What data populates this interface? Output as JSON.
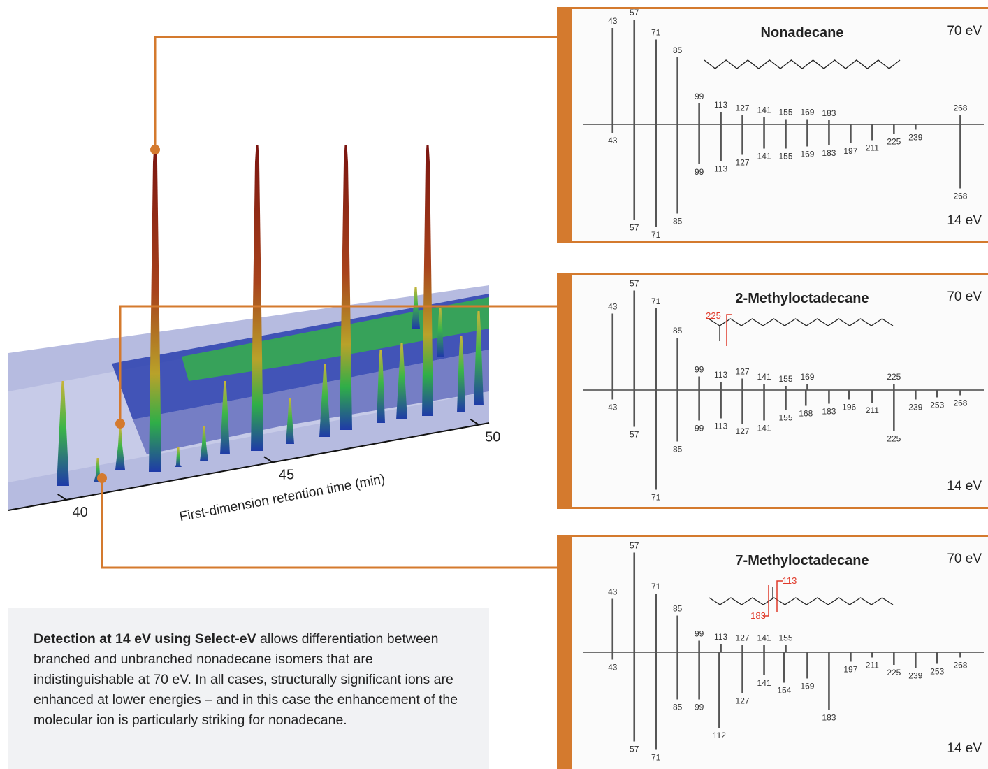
{
  "chart_data": [
    {
      "type": "surface3d",
      "xlabel": "First-dimension retention time (min)",
      "xlim": [
        38.6,
        50.25
      ],
      "xticks": [
        40,
        45,
        50
      ]
    },
    {
      "type": "spectrum",
      "title": "Nonadecane",
      "xlim": [
        30,
        280
      ],
      "ylim": [
        0,
        100
      ],
      "series": [
        {
          "name": "70 eV",
          "color": "#555555",
          "x": [
            43,
            57,
            71,
            85,
            99,
            113,
            127,
            141,
            155,
            169,
            183,
            268
          ],
          "values": [
            92,
            100,
            81,
            64,
            20,
            12,
            9,
            7,
            5,
            5,
            4,
            9
          ]
        },
        {
          "name": "14 eV",
          "color": "#555555",
          "x": [
            43,
            57,
            71,
            85,
            99,
            113,
            127,
            141,
            155,
            169,
            183,
            197,
            211,
            225,
            239,
            268
          ],
          "values": [
            8,
            91,
            98,
            85,
            38,
            35,
            29,
            23,
            23,
            21,
            20,
            18,
            15,
            9,
            5,
            61
          ]
        }
      ],
      "annotations": []
    },
    {
      "type": "spectrum",
      "title": "2-Methyloctadecane",
      "xlim": [
        30,
        280
      ],
      "ylim": [
        0,
        100
      ],
      "series": [
        {
          "name": "70 eV",
          "color": "#555555",
          "x": [
            43,
            57,
            71,
            85,
            99,
            113,
            127,
            141,
            155,
            169,
            225
          ],
          "values": [
            73,
            95,
            78,
            50,
            13,
            8,
            11,
            6,
            4,
            6,
            6
          ]
        },
        {
          "name": "14 eV",
          "color": "#555555",
          "x": [
            43,
            57,
            71,
            85,
            99,
            113,
            127,
            141,
            155,
            168,
            183,
            196,
            211,
            225,
            239,
            253,
            268
          ],
          "values": [
            9,
            35,
            95,
            49,
            29,
            27,
            32,
            29,
            19,
            15,
            13,
            9,
            12,
            39,
            9,
            7,
            5
          ]
        }
      ],
      "annotations": [
        "225"
      ]
    },
    {
      "type": "spectrum",
      "title": "7-Methyloctadecane",
      "xlim": [
        30,
        280
      ],
      "ylim": [
        0,
        100
      ],
      "series": [
        {
          "name": "70 eV",
          "color": "#555555",
          "x": [
            43,
            57,
            71,
            85,
            99,
            113,
            127,
            141,
            155
          ],
          "values": [
            51,
            95,
            56,
            35,
            11,
            8,
            7,
            7,
            7
          ]
        },
        {
          "name": "14 eV",
          "color": "#555555",
          "x": [
            43,
            57,
            71,
            85,
            99,
            112,
            127,
            141,
            154,
            169,
            183,
            197,
            211,
            225,
            239,
            253,
            268
          ],
          "values": [
            7,
            85,
            93,
            45,
            45,
            72,
            39,
            22,
            29,
            25,
            55,
            9,
            5,
            12,
            15,
            11,
            5
          ]
        }
      ],
      "annotations": [
        "113",
        "183"
      ]
    }
  ],
  "caption": {
    "bold": "Detection at 14 eV using Select-eV",
    "text": " allows differentiation between branched and unbranched nonadecane isomers that are indistinguishable at 70 eV. In all cases, structurally significant ions are enhanced at lower energies – and in this case the enhancement of the molecular ion is particularly striking for nonadecane."
  }
}
